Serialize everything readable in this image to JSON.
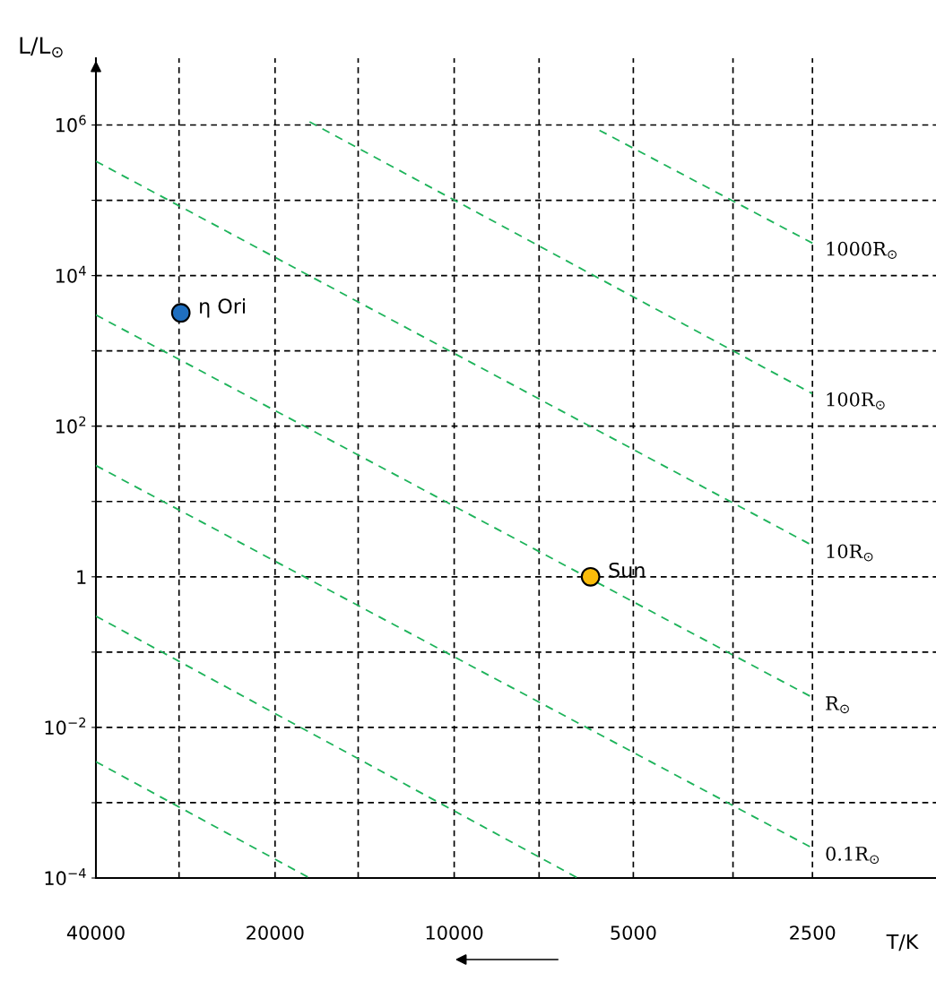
{
  "chart_data": {
    "type": "line",
    "xlabel": "T/K",
    "ylabel": "L/L$_{⊙}$",
    "log": "xy",
    "xlim": [
      40000,
      1550
    ],
    "ylim": [
      0.0001,
      7700000
    ],
    "xticks": [
      40000,
      {
        "value": 29000,
        "label": null
      },
      20000,
      {
        "value": 14500,
        "label": null
      },
      10000,
      {
        "value": 7200,
        "label": null
      },
      5000,
      {
        "value": 3400,
        "label": null
      },
      2500
    ],
    "yticks": [
      {
        "value": 0.0001,
        "label": "10$^{−4}$"
      },
      {
        "value": 0.001,
        "label": null
      },
      {
        "value": 0.01,
        "label": "10$^{−2}$"
      },
      {
        "value": 0.1,
        "label": null
      },
      1,
      {
        "value": 10,
        "label": null
      },
      {
        "value": 100,
        "label": "10$^{2}$"
      },
      {
        "value": 1000,
        "label": null
      },
      {
        "value": 10000,
        "label": "10$^{4}$"
      },
      {
        "value": 100000,
        "label": null
      },
      {
        "value": 1000000,
        "label": "10$^{6}$"
      }
    ],
    "grid": true,
    "line_style": "dashed",
    "series": [
      {
        "name": "1000R$_{⊙}$",
        "color": "#1db35a",
        "x": [
          5700,
          2500
        ],
        "values": [
          850000,
          27000
        ]
      },
      {
        "name": "100R$_{⊙}$",
        "color": "#1db35a",
        "x": [
          17500,
          2500
        ],
        "values": [
          1100000,
          270
        ]
      },
      {
        "name": "10R$_{⊙}$",
        "color": "#1db35a",
        "x": [
          40000,
          2500
        ],
        "values": [
          330000,
          2.6
        ]
      },
      {
        "name": "R$_{⊙}$",
        "color": "#1db35a",
        "x": [
          40000,
          2500
        ],
        "values": [
          3000,
          0.025
        ]
      },
      {
        "name": "0.1R$_{⊙}$",
        "color": "#1db35a",
        "x": [
          40000,
          2500
        ],
        "values": [
          30,
          0.00025
        ]
      },
      {
        "color": "#1db35a",
        "x": [
          40000,
          6200
        ],
        "values": [
          0.3,
          0.0001
        ]
      },
      {
        "color": "#1db35a",
        "x": [
          40000,
          17500
        ],
        "values": [
          0.0035,
          0.0001
        ]
      },
      {
        "type": "scatter",
        "marker": "circle",
        "color": "#1f6fc0",
        "x": [
          28800
        ],
        "values": [
          3200
        ]
      },
      {
        "type": "scatter",
        "marker": "circle",
        "color": "#fbbc0a",
        "x": [
          5900
        ],
        "values": [
          1
        ]
      }
    ],
    "annotations": [
      {
        "text": "η Ori",
        "x": 28800,
        "y": 3200
      },
      {
        "text": "Sun",
        "x": 5900,
        "y": 1
      }
    ]
  }
}
